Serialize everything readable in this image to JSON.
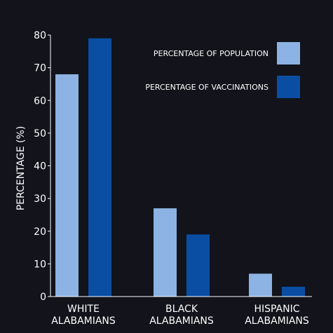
{
  "chart_data": {
    "type": "bar",
    "title": "",
    "ylabel": "PERCENTAGE (%)",
    "xlabel": "",
    "ylim": [
      0,
      80
    ],
    "yticks": [
      0,
      10,
      20,
      30,
      40,
      50,
      60,
      70,
      80
    ],
    "grid": false,
    "legend_position": "top-right",
    "categories": [
      [
        "WHITE",
        "ALABAMIANS"
      ],
      [
        "BLACK",
        "ALABAMIANS"
      ],
      [
        "HISPANIC",
        "ALABAMIANS"
      ]
    ],
    "series": [
      {
        "name": "PERCENTAGE OF POPULATION",
        "color": "#8cb3e3",
        "values": [
          68,
          27,
          7
        ]
      },
      {
        "name": "PERCENTAGE OF VACCINATIONS",
        "color": "#0a4ea3",
        "values": [
          79,
          19,
          3
        ]
      }
    ],
    "background": "#12131b"
  }
}
